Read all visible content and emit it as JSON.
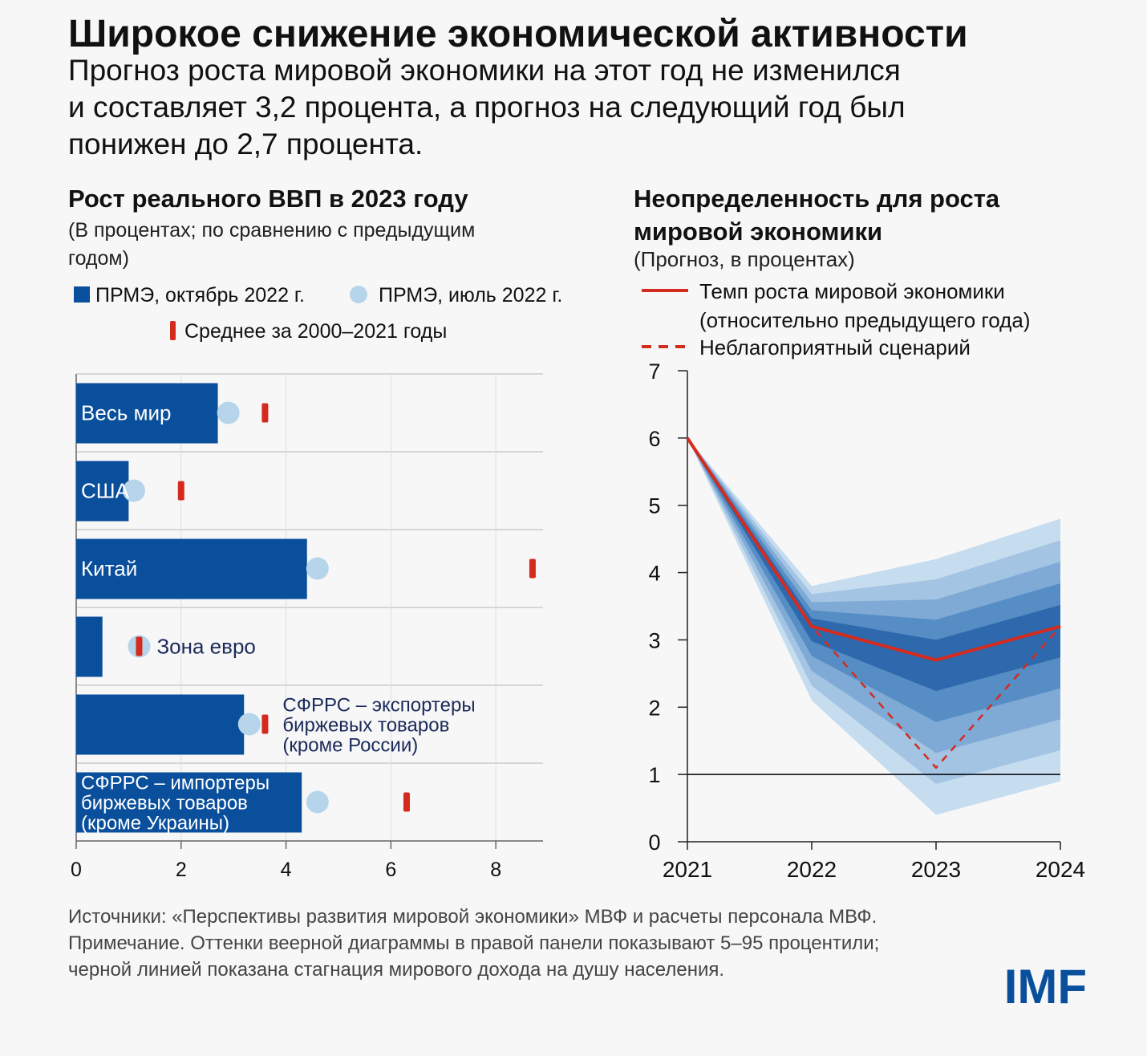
{
  "title": "Широкое снижение экономической активности",
  "subtitle": "Прогноз роста мировой экономики на этот год не изменился\nи составляет 3,2 процента, а прогноз на следующий год был\nпонижен до 2,7 процента.",
  "sources": "Источники: «Перспективы развития мировой экономики» МВФ и расчеты персонала МВФ.",
  "note": "Примечание. Оттенки веерной диаграммы в правой панели показывают 5–95 процентили;\nчерной линией показана стагнация мирового дохода на душу населения.",
  "logo": "IMF",
  "chart_data": [
    {
      "type": "hbar",
      "title": "Рост реального ВВП в 2023 году",
      "subtitle": "(В процентах; по сравнению с предыдущим\nгодом)",
      "categories": [
        "Весь мир",
        "США",
        "Китай",
        "Зона евро",
        "СФРРС – экспортеры\nбиржевых товаров\n(кроме России)",
        "СФРРС – импортеры\nбиржевых товаров\n(кроме Украины)"
      ],
      "label_position": [
        "inside",
        "inside",
        "inside",
        "outside",
        "outside",
        "inside"
      ],
      "series": [
        {
          "name": "ПРМЭ, октябрь 2022 г.",
          "color": "#0a4f9c",
          "marker": "bar",
          "values": [
            2.7,
            1.0,
            4.4,
            0.5,
            3.2,
            4.3
          ]
        },
        {
          "name": "ПРМЭ, июль 2022 г.",
          "color": "#b7d5ea",
          "marker": "circle",
          "values": [
            2.9,
            1.1,
            4.6,
            1.2,
            3.3,
            4.6
          ]
        },
        {
          "name": "Среднее за 2000–2021 годы",
          "color": "#d52b1e",
          "marker": "dash",
          "values": [
            3.6,
            2.0,
            8.7,
            1.2,
            3.6,
            6.3
          ]
        }
      ],
      "xlim": [
        0,
        8.9
      ],
      "xticks": [
        0,
        2,
        4,
        6,
        8
      ],
      "grid": true
    },
    {
      "type": "fan",
      "title": "Неопределенность для роста\nмировой экономики",
      "subtitle": "(Прогноз, в процентах)",
      "x": [
        2021,
        2022,
        2023,
        2024
      ],
      "series": [
        {
          "name": "Темп роста мировой экономики\n(относительно предыдущего года)",
          "color": "#d52b1e",
          "dash": false,
          "values": [
            6.0,
            3.2,
            2.7,
            3.2
          ]
        },
        {
          "name": "Неблагоприятный сценарий",
          "color": "#d52b1e",
          "dash": true,
          "values": [
            6.0,
            3.2,
            1.1,
            3.2
          ]
        }
      ],
      "bands": [
        {
          "color": "#c6dcef",
          "lower": [
            6.0,
            2.1,
            0.4,
            0.9
          ],
          "upper": [
            6.0,
            3.8,
            4.2,
            4.8
          ]
        },
        {
          "color": "#a3c4e3",
          "lower": [
            6.0,
            2.32,
            0.86,
            1.36
          ],
          "upper": [
            6.0,
            3.68,
            3.9,
            4.48
          ]
        },
        {
          "color": "#7eaad5",
          "lower": [
            6.0,
            2.54,
            1.32,
            1.82
          ],
          "upper": [
            6.0,
            3.56,
            3.6,
            4.16
          ]
        },
        {
          "color": "#558dc4",
          "lower": [
            6.0,
            2.76,
            1.78,
            2.28
          ],
          "upper": [
            6.0,
            3.44,
            3.3,
            3.84
          ]
        },
        {
          "color": "#2f69ad",
          "lower": [
            6.0,
            2.98,
            2.24,
            2.74
          ],
          "upper": [
            6.0,
            3.32,
            3.0,
            3.52
          ]
        }
      ],
      "reference_line": 1,
      "reference_color": "#000000",
      "xlim": [
        2021,
        2024
      ],
      "xticks": [
        2021,
        2022,
        2023,
        2024
      ],
      "ylim": [
        0,
        7
      ],
      "yticks": [
        0,
        1,
        2,
        3,
        4,
        5,
        6,
        7
      ]
    }
  ]
}
